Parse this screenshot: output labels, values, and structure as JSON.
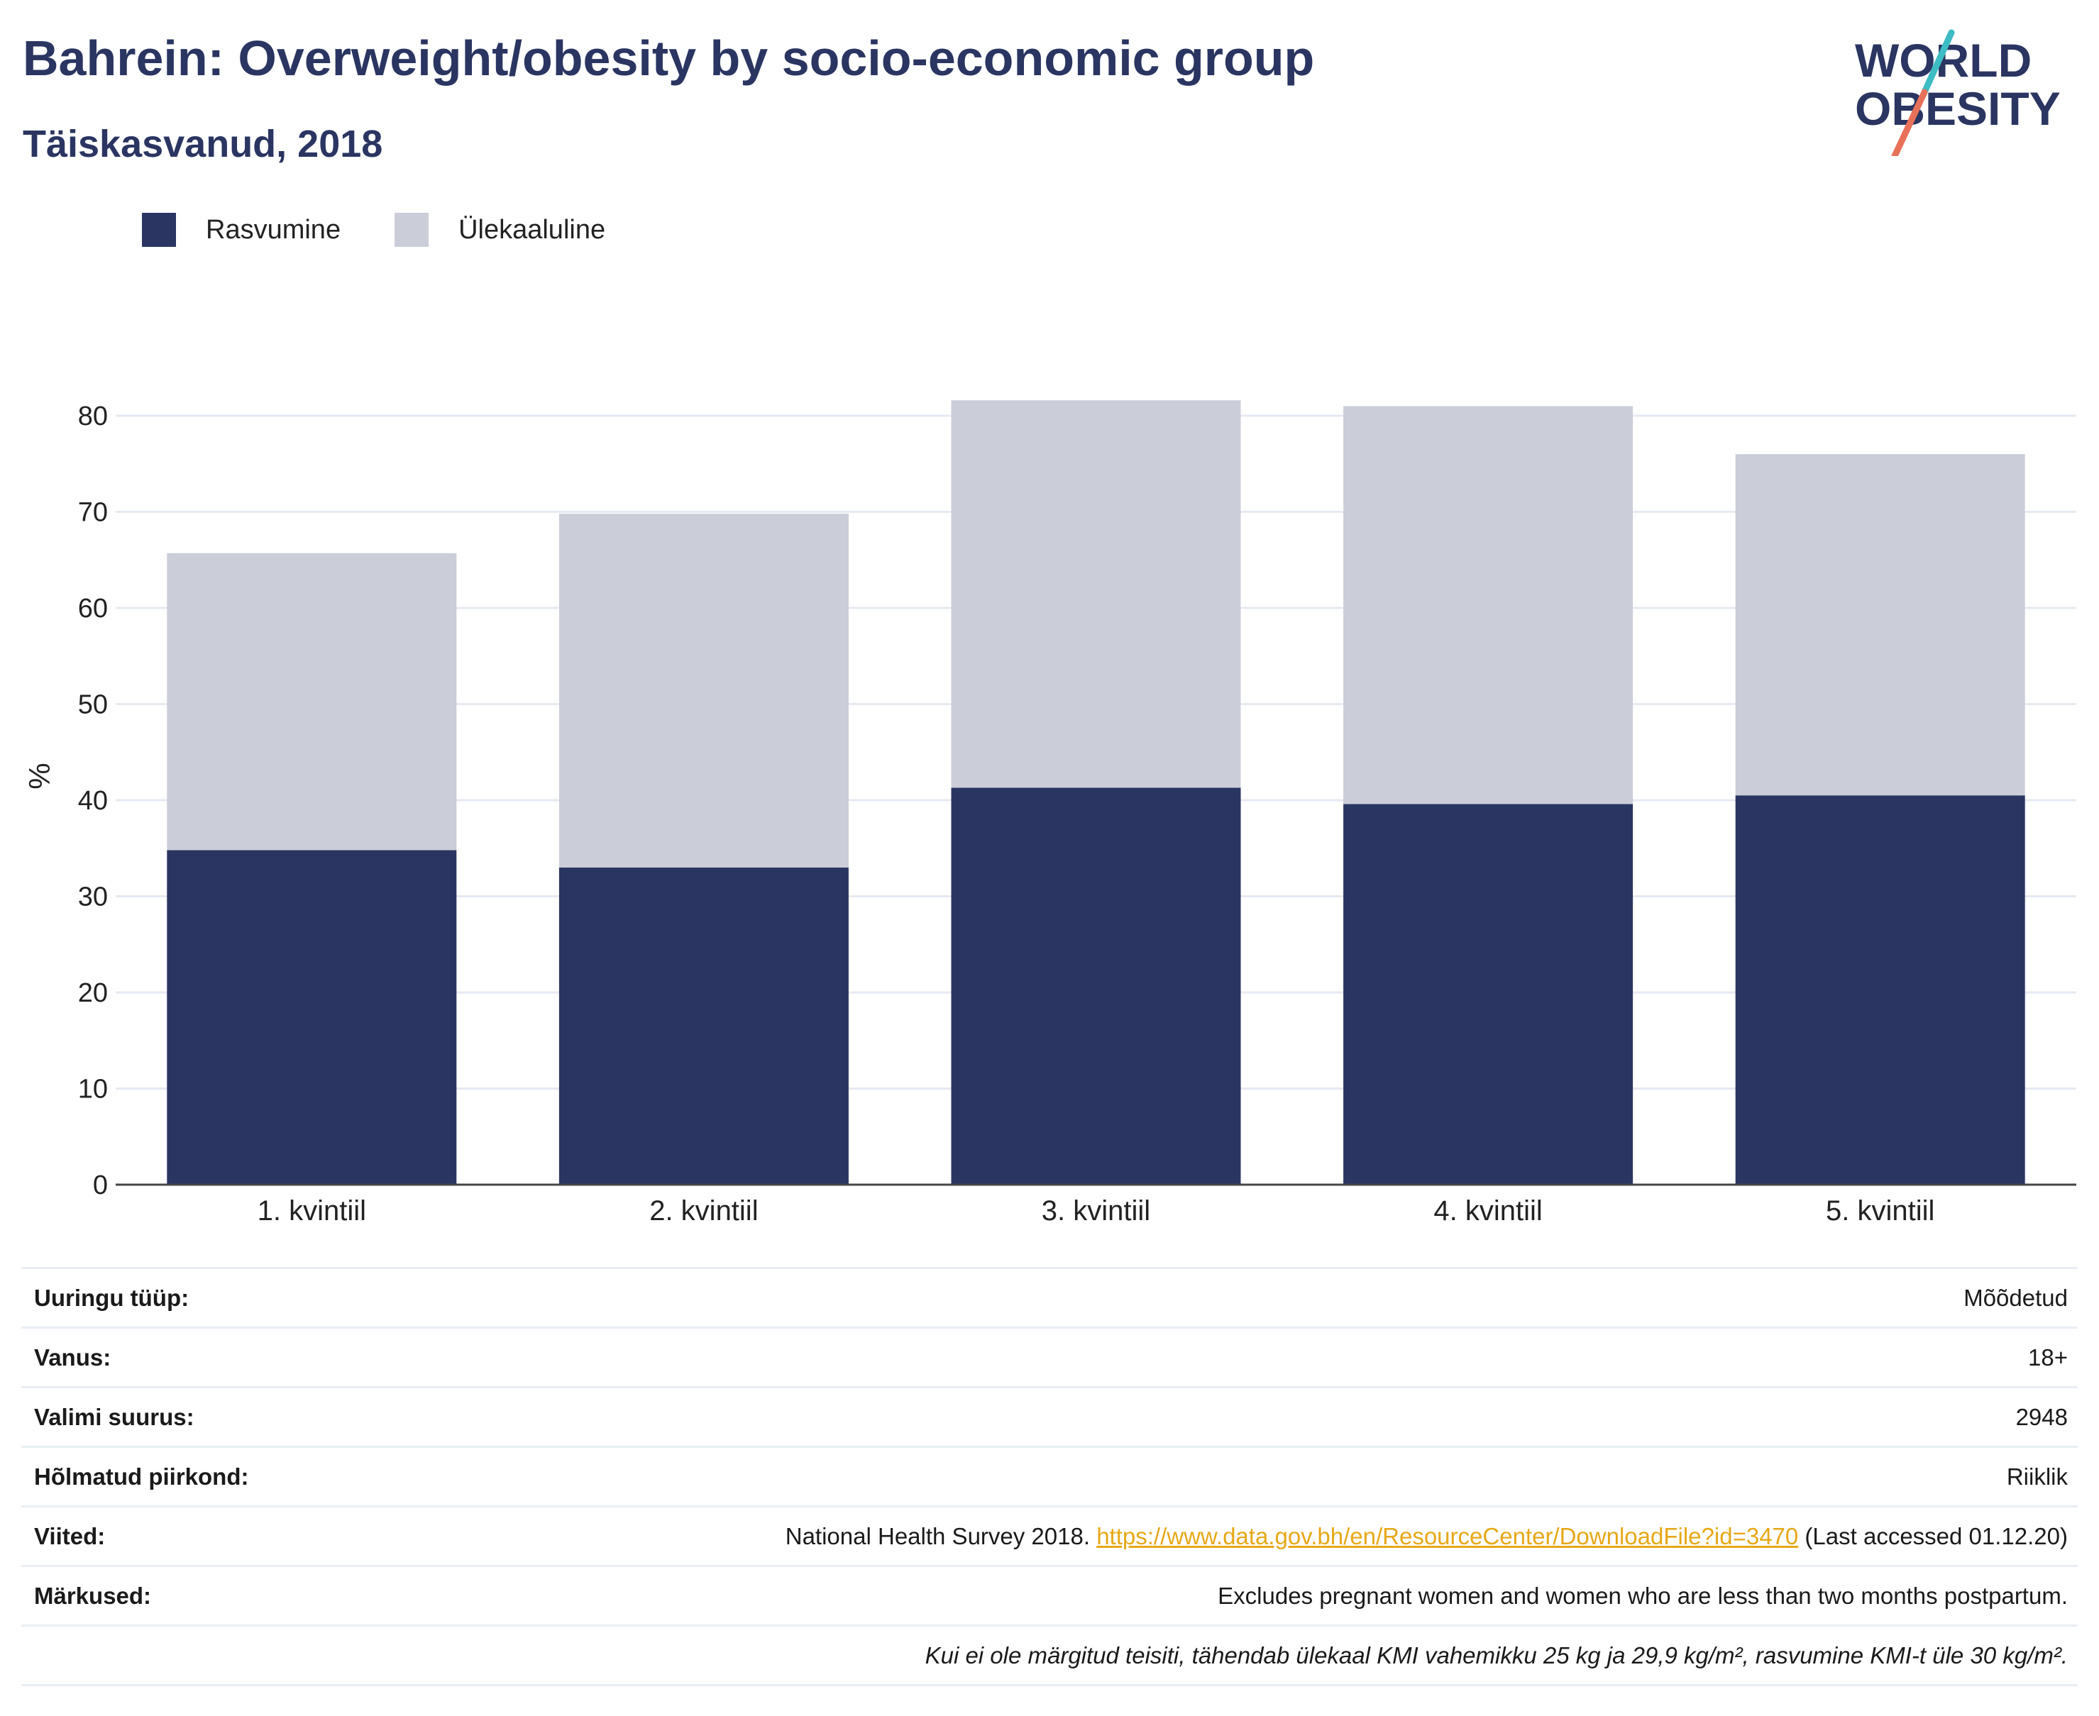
{
  "header": {
    "title": "Bahrein: Overweight/obesity by socio-economic group",
    "subtitle": "Täiskasvanud, 2018"
  },
  "logo": {
    "line1": "WORLD",
    "line2": "OBESITY",
    "colors": {
      "text": "#2a3561",
      "slash_top": "#3dbcc4",
      "slash_bottom": "#e8715a"
    }
  },
  "chart_data": {
    "type": "bar",
    "stacked": true,
    "categories": [
      "1. kvintiil",
      "2. kvintiil",
      "3. kvintiil",
      "4. kvintiil",
      "5. kvintiil"
    ],
    "series": [
      {
        "name": "Rasvumine",
        "color": "#2a3561",
        "values": [
          34.8,
          33.0,
          41.3,
          39.6,
          40.5
        ]
      },
      {
        "name": "Ülekaaluline",
        "color": "#cbcdd9",
        "values": [
          30.9,
          36.8,
          40.3,
          41.4,
          35.5
        ]
      }
    ],
    "ylabel": "%",
    "ylim": [
      0,
      85
    ],
    "yticks": [
      0,
      10,
      20,
      30,
      40,
      50,
      60,
      70,
      80
    ],
    "grid": true,
    "legend_position": "top-left"
  },
  "meta": {
    "rows": [
      {
        "label": "Uuringu tüüp:",
        "value": "Mõõdetud"
      },
      {
        "label": "Vanus:",
        "value": "18+"
      },
      {
        "label": "Valimi suurus:",
        "value": "2948"
      },
      {
        "label": "Hõlmatud piirkond:",
        "value": "Riiklik"
      }
    ],
    "references": {
      "label": "Viited:",
      "prefix": "National Health Survey 2018. ",
      "link": "https://www.data.gov.bh/en/ResourceCenter/DownloadFile?id=3470",
      "suffix": " (Last accessed 01.12.20)"
    },
    "notes": {
      "label": "Märkused:",
      "value": "Excludes pregnant women and women who are less than two months postpartum."
    },
    "footnote": "Kui ei ole märgitud teisiti, tähendab ülekaal KMI vahemikku 25 kg ja 29,9 kg/m², rasvumine KMI-t üle 30 kg/m²."
  }
}
